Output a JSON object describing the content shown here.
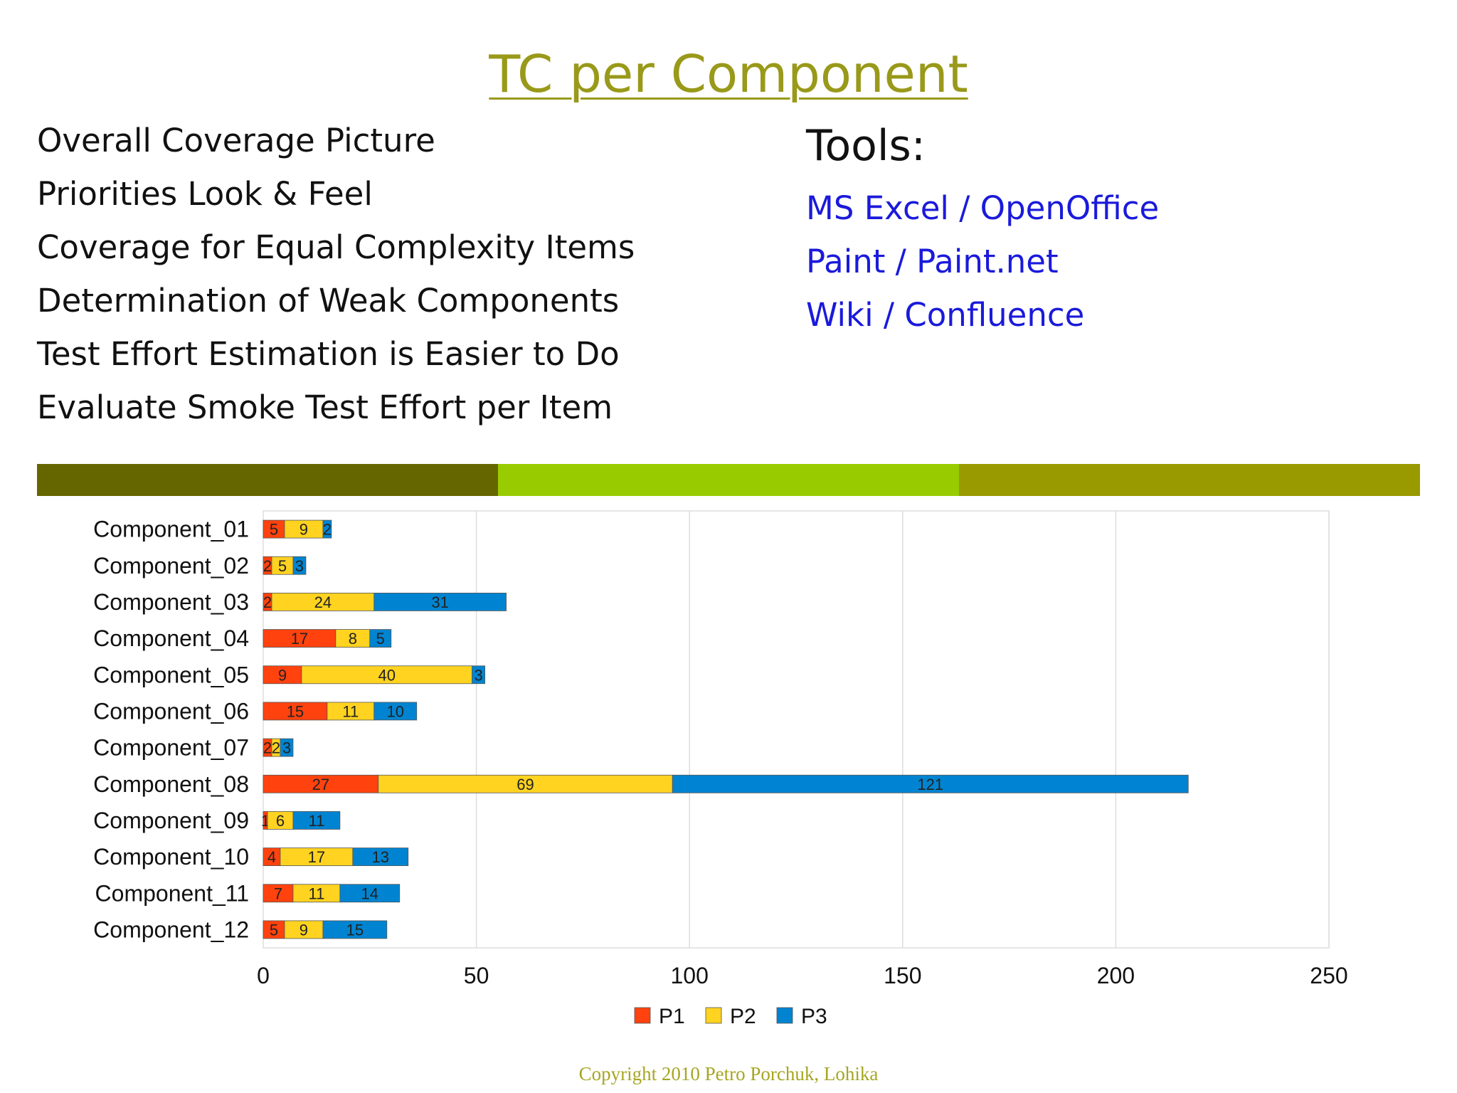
{
  "slide": {
    "title": "TC per Component",
    "bullets": [
      "Overall Coverage Picture",
      "Priorities Look & Feel",
      "Coverage for Equal Complexity Items",
      "Determination of Weak Components",
      "Test Effort Estimation is Easier to Do",
      "Evaluate Smoke Test Effort per Item"
    ],
    "tools_heading": "Tools:",
    "tools": [
      "MS Excel / OpenOffice",
      "Paint / Paint.net",
      "Wiki / Confluence"
    ],
    "band_colors": [
      "#666600",
      "#99cc00",
      "#999900"
    ],
    "copyright": "Copyright 2010 Petro Porchuk, Lohika"
  },
  "chart_data": {
    "type": "bar",
    "orientation": "horizontal",
    "stacked": true,
    "categories": [
      "Component_01",
      "Component_02",
      "Component_03",
      "Component_04",
      "Component_05",
      "Component_06",
      "Component_07",
      "Component_08",
      "Component_09",
      "Component_10",
      "Component_11",
      "Component_12"
    ],
    "series": [
      {
        "name": "P1",
        "color": "#ff420e",
        "values": [
          5,
          2,
          2,
          17,
          9,
          15,
          2,
          27,
          1,
          4,
          7,
          5
        ]
      },
      {
        "name": "P2",
        "color": "#ffd320",
        "values": [
          9,
          5,
          24,
          8,
          40,
          11,
          2,
          69,
          6,
          17,
          11,
          9
        ]
      },
      {
        "name": "P3",
        "color": "#0084d1",
        "values": [
          2,
          3,
          31,
          5,
          3,
          10,
          3,
          121,
          11,
          13,
          14,
          15
        ]
      }
    ],
    "xlim": [
      0,
      250
    ],
    "xticks": [
      0,
      50,
      100,
      150,
      200,
      250
    ],
    "grid": true,
    "legend": "bottom",
    "data_labels": true
  }
}
